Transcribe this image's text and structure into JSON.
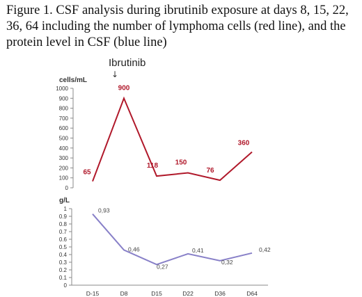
{
  "caption": "Figure 1. CSF analysis during ibrutinib exposure at days 8, 15, 22, 36, 64 including the number of lymphoma cells (red line), and the protein level in CSF (blue line)",
  "annotation": {
    "label": "Ibrutinib",
    "arrow": "↓"
  },
  "colors": {
    "cells": "#b0182a",
    "protein": "#8880c8",
    "axis": "#888888",
    "text": "#333333"
  },
  "chart_data": [
    {
      "type": "line",
      "ylabel": "cells/mL",
      "ylim": [
        0,
        1000
      ],
      "yticks": [
        0,
        100,
        200,
        300,
        400,
        500,
        600,
        700,
        800,
        900,
        1000
      ],
      "categories": [
        "D-15",
        "D8",
        "D15",
        "D22",
        "D36",
        "D64"
      ],
      "series": [
        {
          "values": [
            65,
            900,
            118,
            150,
            76,
            360
          ],
          "labels": [
            "65",
            "900",
            "118",
            "150",
            "76",
            "360"
          ]
        }
      ]
    },
    {
      "type": "line",
      "ylabel": "g/L",
      "ylim": [
        0,
        1
      ],
      "yticks": [
        "0",
        "0.1",
        "0.2",
        "0.3",
        "0.4",
        "0.5",
        "0.6",
        "0.7",
        "0.8",
        "0.9",
        "1"
      ],
      "categories": [
        "D-15",
        "D8",
        "D15",
        "D22",
        "D36",
        "D64"
      ],
      "xticks": [
        "D-15",
        "D8",
        "D15",
        "D22",
        "D36",
        "D64"
      ],
      "series": [
        {
          "values": [
            0.93,
            0.46,
            0.27,
            0.41,
            0.32,
            0.42
          ],
          "labels": [
            "0,93",
            "0,46",
            "0,27",
            "0,41",
            "0,32",
            "0,42"
          ]
        }
      ]
    }
  ]
}
